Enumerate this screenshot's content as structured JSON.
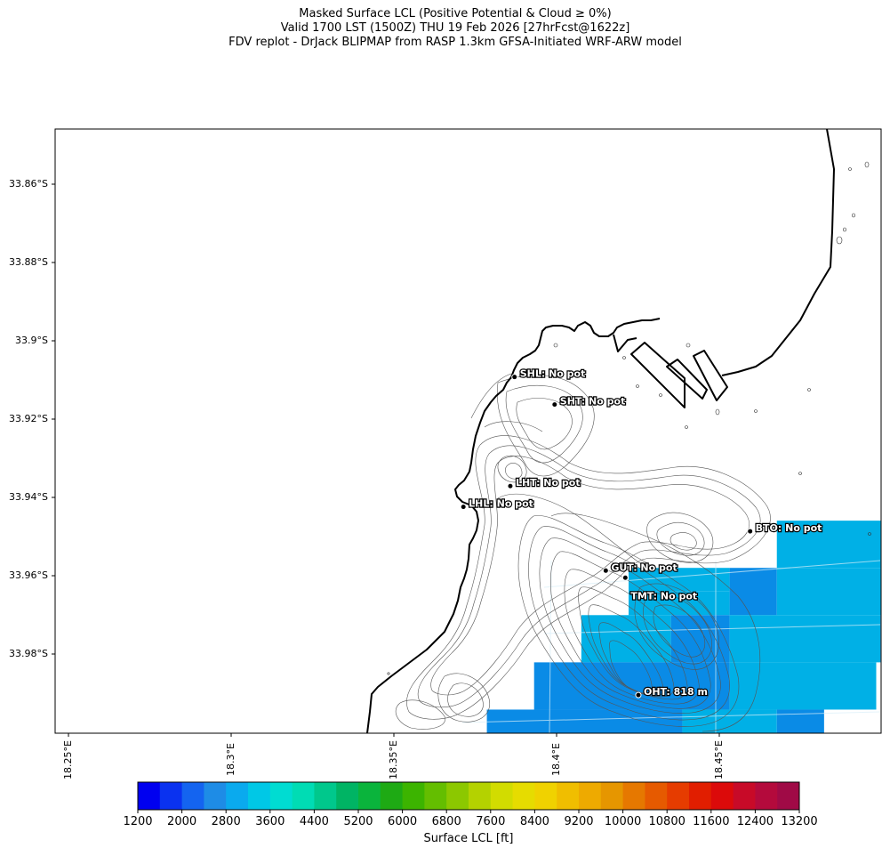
{
  "title": {
    "line1": "Masked Surface LCL (Positive Potential & Cloud ≥ 0%)",
    "line2": "Valid 1700 LST (1500Z) THU 19 Feb 2026 [27hrFcst@1622z]",
    "line3": "FDV replot - DrJack BLIPMAP from RASP 1.3km GFSA-Initiated WRF-ARW model"
  },
  "map": {
    "lon_range": [
      18.2355,
      18.489
    ],
    "lat_range": [
      -33.9985,
      -33.845
    ],
    "lat_ticks": [
      "33.86°S",
      "33.88°S",
      "33.9°S",
      "33.92°S",
      "33.94°S",
      "33.96°S",
      "33.98°S"
    ],
    "lon_ticks": [
      "18.25°E",
      "18.3°E",
      "18.35°E",
      "18.4°E",
      "18.45°E"
    ]
  },
  "stations": [
    {
      "id": "SHL",
      "label": "SHL: No pot",
      "lon": 18.3765,
      "lat": -33.908
    },
    {
      "id": "SHT",
      "label": "SHT: No pot",
      "lon": 18.3888,
      "lat": -33.915
    },
    {
      "id": "LHT",
      "label": "LHT: No pot",
      "lon": 18.3752,
      "lat": -33.9357
    },
    {
      "id": "LHL",
      "label": "LHL: No pot",
      "lon": 18.3608,
      "lat": -33.941
    },
    {
      "id": "BTO",
      "label": "BTO: No pot",
      "lon": 18.4488,
      "lat": -33.9472
    },
    {
      "id": "GUT",
      "label": "GUT: No pot",
      "lon": 18.4045,
      "lat": -33.9572
    },
    {
      "id": "GUT2",
      "label": "",
      "lon": 18.4105,
      "lat": -33.959
    },
    {
      "id": "TMT",
      "label": "TMT: No pot",
      "lon": 18.4105,
      "lat": -33.959
    },
    {
      "id": "OHT",
      "label": "OHT: 818 m",
      "lon": 18.4145,
      "lat": -33.9888
    }
  ],
  "grid_cells": [
    {
      "lon0": 18.457,
      "lon1": 18.489,
      "lat0": -33.9445,
      "lat1": -33.9565,
      "lcl_ft": 2800
    },
    {
      "lon0": 18.4115,
      "lon1": 18.4425,
      "lat0": -33.9565,
      "lat1": -33.9625,
      "lcl_ft": 2800
    },
    {
      "lon0": 18.4425,
      "lon1": 18.457,
      "lat0": -33.9565,
      "lat1": -33.9685,
      "lcl_ft": 2400
    },
    {
      "lon0": 18.457,
      "lon1": 18.489,
      "lat0": -33.9565,
      "lat1": -33.9685,
      "lcl_ft": 2800
    },
    {
      "lon0": 18.4115,
      "lon1": 18.4425,
      "lat0": -33.9625,
      "lat1": -33.9685,
      "lcl_ft": 2800
    },
    {
      "lon0": 18.397,
      "lon1": 18.4245,
      "lat0": -33.9685,
      "lat1": -33.9805,
      "lcl_ft": 2800
    },
    {
      "lon0": 18.4245,
      "lon1": 18.4425,
      "lat0": -33.9685,
      "lat1": -33.9805,
      "lcl_ft": 2400
    },
    {
      "lon0": 18.4425,
      "lon1": 18.4888,
      "lat0": -33.9685,
      "lat1": -33.9805,
      "lcl_ft": 2800
    },
    {
      "lon0": 18.4888,
      "lon1": 18.489,
      "lat0": -33.9685,
      "lat1": -33.9805,
      "lcl_ft": 2400
    },
    {
      "lon0": 18.3825,
      "lon1": 18.4425,
      "lat0": -33.9805,
      "lat1": -33.9925,
      "lcl_ft": 2400
    },
    {
      "lon0": 18.4425,
      "lon1": 18.4875,
      "lat0": -33.9805,
      "lat1": -33.9925,
      "lcl_ft": 2800
    },
    {
      "lon0": 18.368,
      "lon1": 18.428,
      "lat0": -33.9925,
      "lat1": -34.0005,
      "lcl_ft": 2400
    },
    {
      "lon0": 18.428,
      "lon1": 18.457,
      "lat0": -33.9925,
      "lat1": -34.0005,
      "lcl_ft": 2800
    },
    {
      "lon0": 18.457,
      "lon1": 18.4715,
      "lat0": -33.9925,
      "lat1": -34.0005,
      "lcl_ft": 2400
    }
  ],
  "colorbar": {
    "label": "Surface LCL [ft]",
    "min": 1200,
    "max": 13200,
    "step": 400,
    "tick_labels": [
      "1200",
      "2000",
      "2800",
      "3600",
      "4400",
      "5200",
      "6000",
      "6800",
      "7600",
      "8400",
      "9200",
      "10000",
      "10800",
      "11600",
      "12400",
      "13200"
    ],
    "colors": [
      "#0000f0",
      "#0a32f0",
      "#1464f0",
      "#1e8ce6",
      "#0aaaee",
      "#00c8e6",
      "#00dcd2",
      "#00dcb4",
      "#00c88c",
      "#00b464",
      "#0ab43c",
      "#1eaa14",
      "#3cb400",
      "#64be00",
      "#8cc800",
      "#b4d200",
      "#d2dc00",
      "#e6dc00",
      "#f0d200",
      "#f0be00",
      "#eeaa00",
      "#e69600",
      "#e67800",
      "#e65a00",
      "#e63c00",
      "#e11e00",
      "#dc0a0a",
      "#c80a28",
      "#b40a3c",
      "#a00a46"
    ]
  },
  "colors": {
    "cell_2400": "#0a8be6",
    "cell_2800": "#00b0e6",
    "coast": "#000000",
    "terrain_contour": "#555555"
  }
}
